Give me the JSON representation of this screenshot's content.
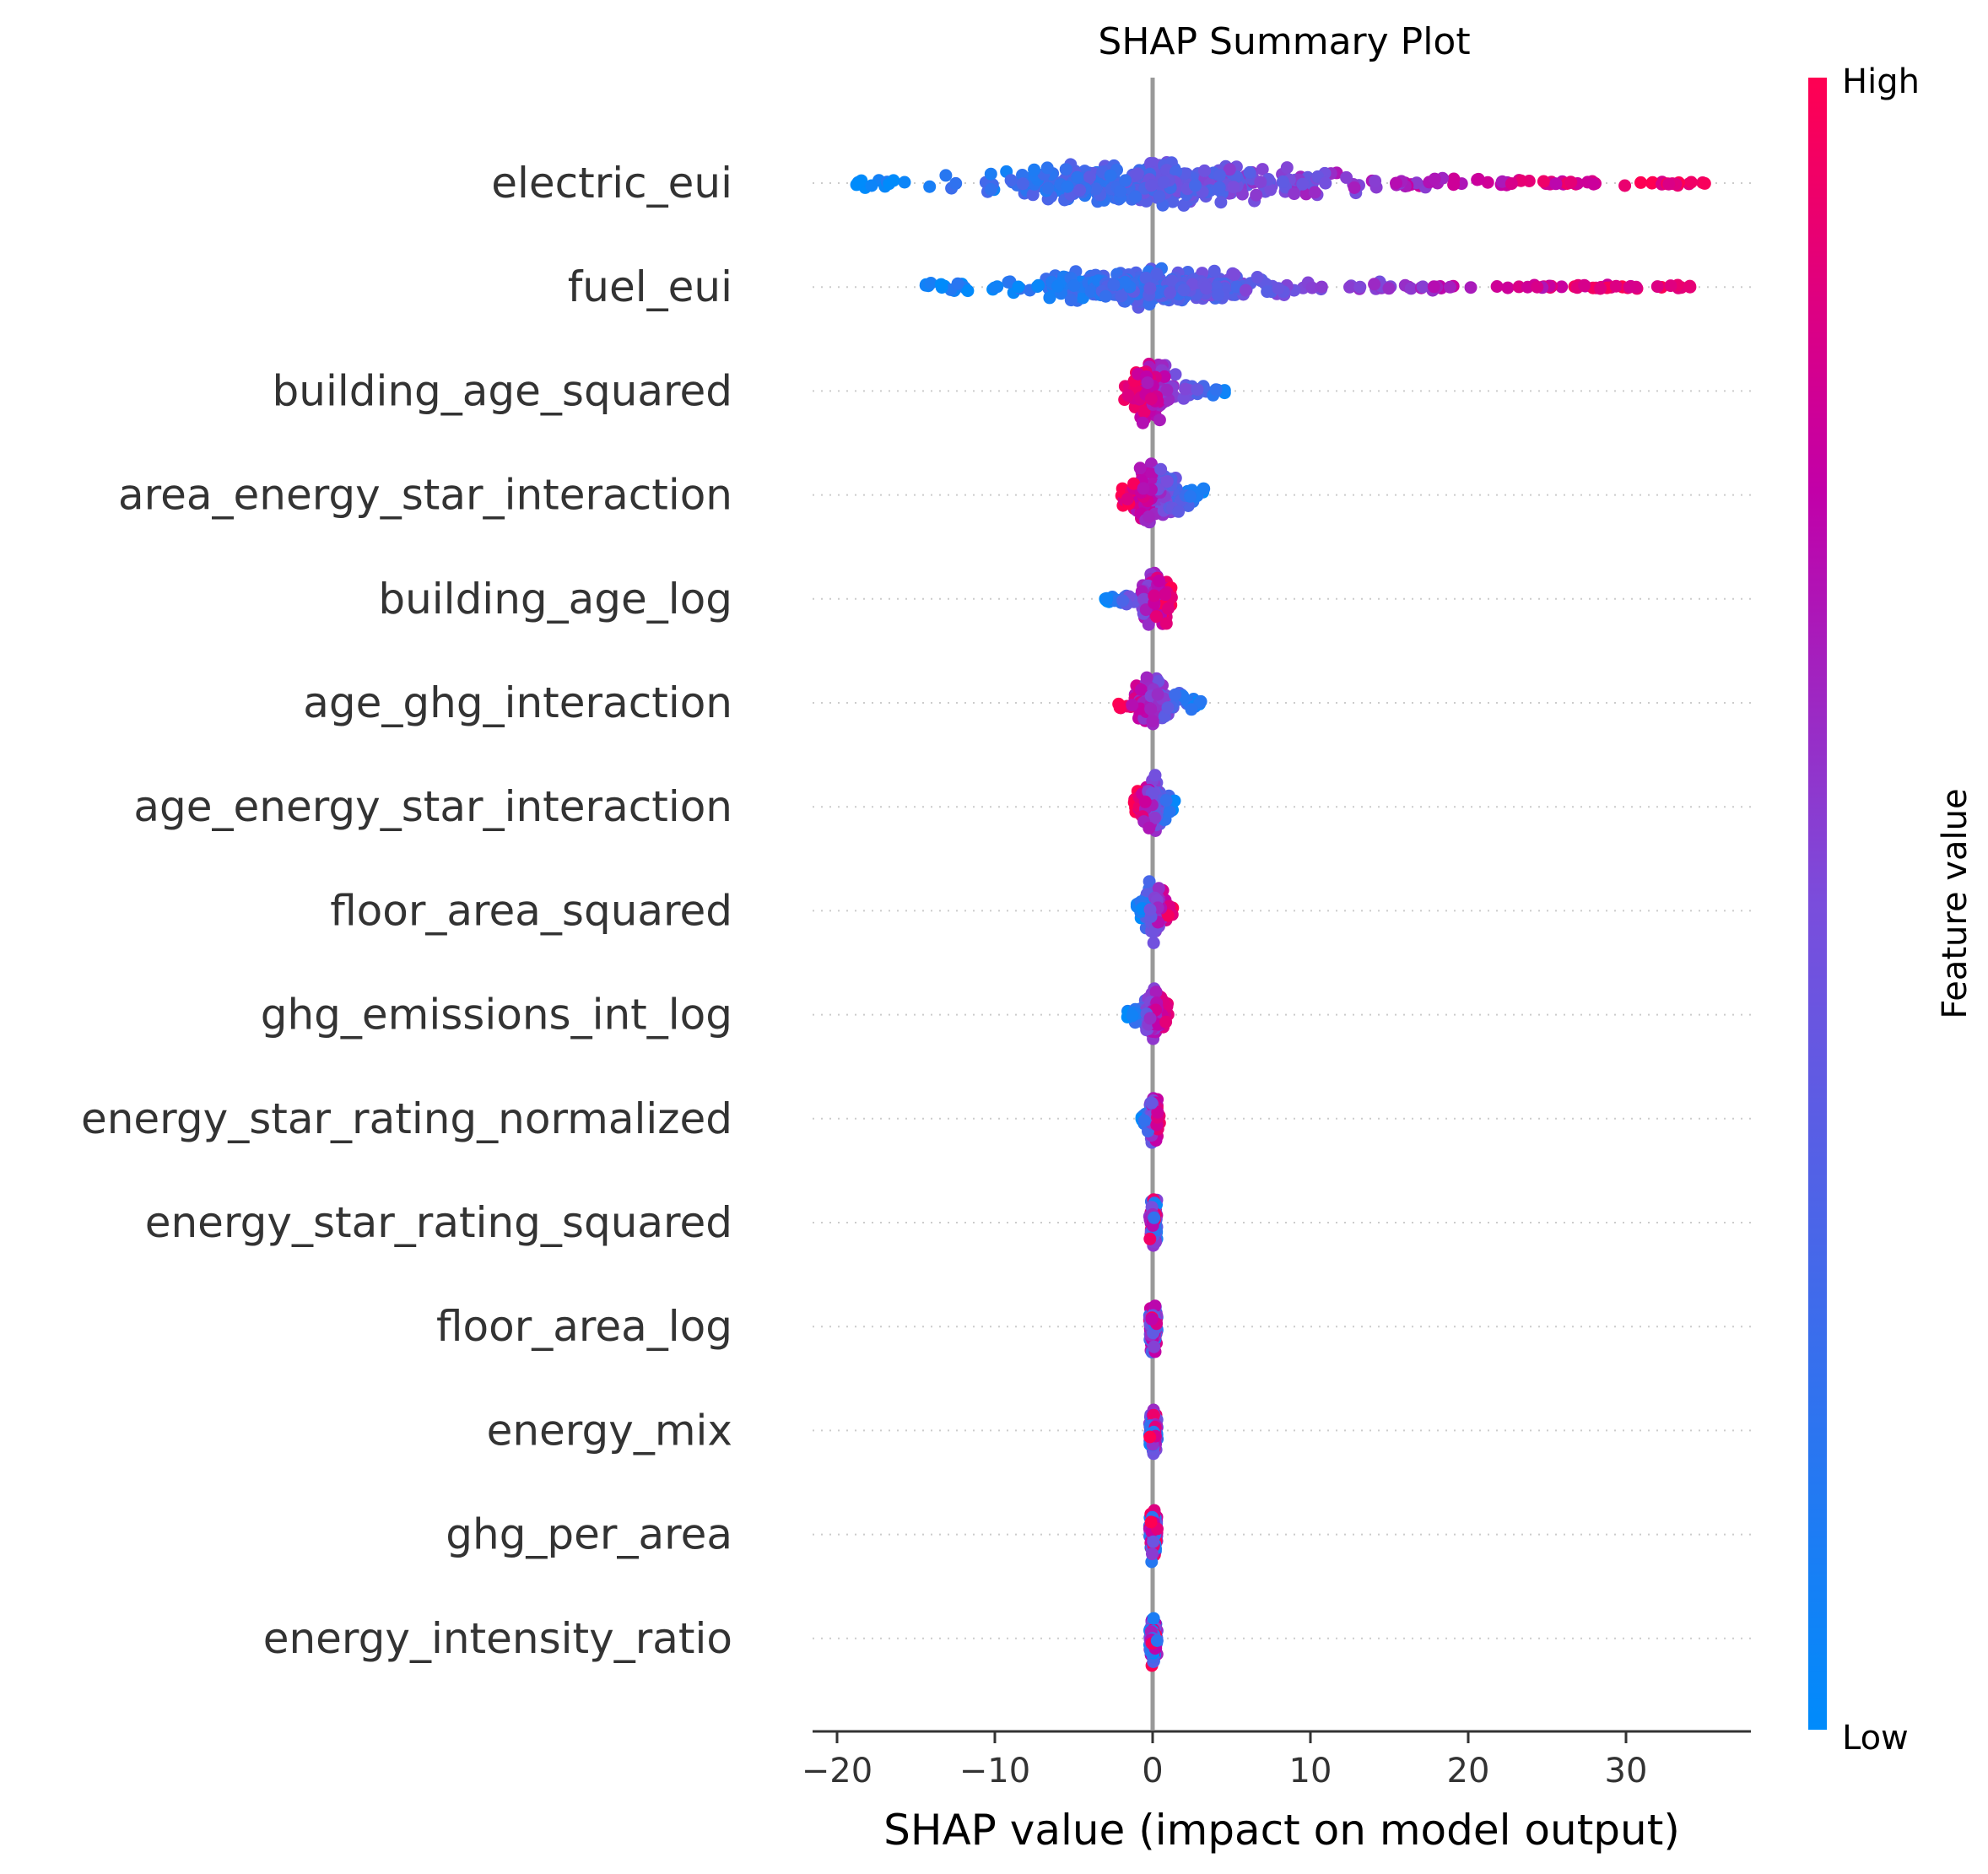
{
  "chart_data": {
    "type": "scatter",
    "title": "SHAP Summary Plot",
    "xlabel": "SHAP value (impact on model output)",
    "ylabel": "",
    "xlim": [
      -22,
      37.5
    ],
    "xticks": [
      -20,
      -10,
      0,
      10,
      20,
      30
    ],
    "xtick_labels": [
      "−20",
      "−10",
      "0",
      "10",
      "20",
      "30"
    ],
    "grid": false,
    "colorbar": {
      "label": "Feature value",
      "high_label": "High",
      "low_label": "Low",
      "low_color": "#008bfb",
      "high_color": "#ff0052"
    },
    "features": [
      {
        "name": "electric_eui",
        "min": -19,
        "max": 35,
        "core": [
          -8,
          8
        ],
        "spread": 0.3,
        "high_side": "right"
      },
      {
        "name": "fuel_eui",
        "min": -14.5,
        "max": 34.5,
        "core": [
          -6,
          6
        ],
        "spread": 0.25,
        "high_side": "right"
      },
      {
        "name": "building_age_squared",
        "min": -1.8,
        "max": 5,
        "core": [
          -1.2,
          1.2
        ],
        "spread": 0.4,
        "high_side": "left"
      },
      {
        "name": "area_energy_star_interaction",
        "min": -2,
        "max": 3.3,
        "core": [
          -1.3,
          1.3
        ],
        "spread": 0.42,
        "high_side": "left"
      },
      {
        "name": "building_age_log",
        "min": -3,
        "max": 1.2,
        "core": [
          -0.5,
          1
        ],
        "spread": 0.38,
        "high_side": "right"
      },
      {
        "name": "age_ghg_interaction",
        "min": -2.3,
        "max": 3.4,
        "core": [
          -1,
          1
        ],
        "spread": 0.38,
        "high_side": "left"
      },
      {
        "name": "age_energy_star_interaction",
        "min": -1.2,
        "max": 1.5,
        "core": [
          -0.7,
          0.7
        ],
        "spread": 0.35,
        "high_side": "left"
      },
      {
        "name": "floor_area_squared",
        "min": -1,
        "max": 1.3,
        "core": [
          -0.6,
          0.6
        ],
        "spread": 0.35,
        "high_side": "right"
      },
      {
        "name": "ghg_emissions_int_log",
        "min": -1.6,
        "max": 1,
        "core": [
          -0.5,
          0.6
        ],
        "spread": 0.35,
        "high_side": "right"
      },
      {
        "name": "energy_star_rating_normalized",
        "min": -0.7,
        "max": 0.5,
        "core": [
          -0.2,
          0.4
        ],
        "spread": 0.3,
        "high_side": "right"
      },
      {
        "name": "energy_star_rating_squared",
        "min": -0.2,
        "max": 0.3,
        "core": [
          -0.15,
          0.25
        ],
        "spread": 0.34,
        "high_side": "mixed"
      },
      {
        "name": "floor_area_log",
        "min": -0.2,
        "max": 0.3,
        "core": [
          -0.15,
          0.25
        ],
        "spread": 0.34,
        "high_side": "mixed"
      },
      {
        "name": "energy_mix",
        "min": -0.2,
        "max": 0.3,
        "core": [
          -0.15,
          0.25
        ],
        "spread": 0.34,
        "high_side": "mixed"
      },
      {
        "name": "ghg_per_area",
        "min": -0.2,
        "max": 0.3,
        "core": [
          -0.15,
          0.25
        ],
        "spread": 0.34,
        "high_side": "mixed"
      },
      {
        "name": "energy_intensity_ratio",
        "min": -0.2,
        "max": 0.3,
        "core": [
          -0.15,
          0.25
        ],
        "spread": 0.34,
        "high_side": "mixed"
      }
    ]
  }
}
